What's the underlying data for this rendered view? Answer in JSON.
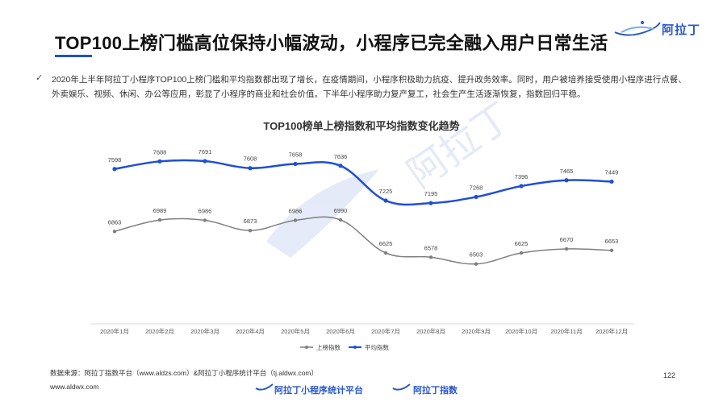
{
  "header": {
    "title": "TOP100上榜门槛高位保持小幅波动，小程序已完全融入用户日常生活",
    "logo_text": "阿拉丁"
  },
  "summary": {
    "bullet": "✓",
    "text": "2020年上半年阿拉丁小程序TOP100上榜门槛和平均指数都出现了增长，在疫情期间，小程序积极助力抗疫、提升政务效率。同时，用户被培养接受使用小程序进行点餐、外卖娱乐、视频、休闲、办公等应用，彰显了小程序的商业和社会价值。下半年小程序助力复产复工，社会生产生活逐渐恢复，指数回归平稳。"
  },
  "chart_data": {
    "type": "line",
    "title": "TOP100榜单上榜指数和平均指数变化趋势",
    "categories": [
      "2020年1月",
      "2020年2月",
      "2020年3月",
      "2020年4月",
      "2020年5月",
      "2020年6月",
      "2020年7月",
      "2020年8月",
      "2020年9月",
      "2020年10月",
      "2020年11月",
      "2020年12月"
    ],
    "series": [
      {
        "name": "上榜指数",
        "color": "#7f7f7f",
        "values": [
          6863,
          6989,
          6986,
          6873,
          6986,
          6990,
          6625,
          6578,
          6503,
          6625,
          6670,
          6653
        ]
      },
      {
        "name": "平均指数",
        "color": "#1f4fd6",
        "values": [
          7598,
          7688,
          7691,
          7608,
          7658,
          7636,
          7225,
          7195,
          7268,
          7396,
          7465,
          7449
        ]
      }
    ],
    "legend": "bottom-center",
    "grid": false,
    "xlabel": "",
    "ylabel": ""
  },
  "watermark": "阿拉丁",
  "footer": {
    "source": "数据来源：阿拉丁指数平台（www.aldzs.com）&阿拉丁小程序统计平台（tj.aldwx.com）",
    "page_number": "122",
    "website": "www.aldwx.com",
    "brand_1": "阿拉丁小程序统计平台",
    "brand_2": "阿拉丁指数"
  }
}
